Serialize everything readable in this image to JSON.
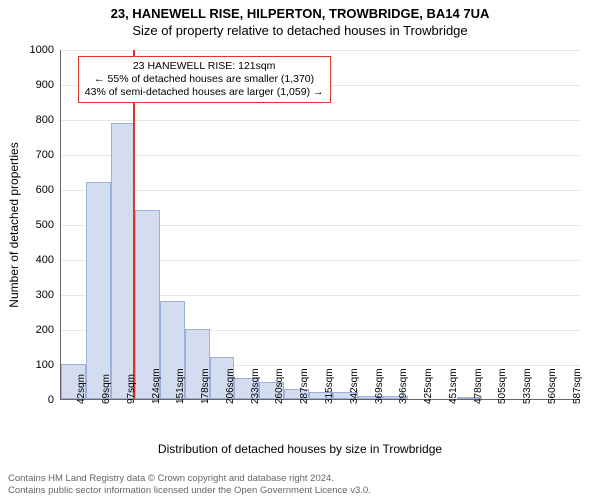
{
  "title": {
    "line1": "23, HANEWELL RISE, HILPERTON, TROWBRIDGE, BA14 7UA",
    "line2": "Size of property relative to detached houses in Trowbridge"
  },
  "chart": {
    "type": "histogram",
    "ylabel": "Number of detached properties",
    "xlabel": "Distribution of detached houses by size in Trowbridge",
    "ylim": [
      0,
      1000
    ],
    "ytick_step": 100,
    "xtick_labels": [
      "42sqm",
      "69sqm",
      "97sqm",
      "124sqm",
      "151sqm",
      "178sqm",
      "206sqm",
      "233sqm",
      "260sqm",
      "287sqm",
      "315sqm",
      "342sqm",
      "369sqm",
      "396sqm",
      "425sqm",
      "451sqm",
      "478sqm",
      "505sqm",
      "533sqm",
      "560sqm",
      "587sqm"
    ],
    "bin_start": 42,
    "bin_width_sqm": 27.25,
    "bin_count": 21,
    "values": [
      100,
      620,
      790,
      540,
      280,
      200,
      120,
      60,
      50,
      30,
      20,
      20,
      10,
      10,
      0,
      0,
      5,
      0,
      0,
      0,
      0
    ],
    "bar_fill": "#d4ddf0",
    "bar_stroke": "#9bb0da",
    "grid_color": "#e8e8e8",
    "axis_color": "#666666",
    "background": "#ffffff",
    "marker": {
      "value_sqm": 121,
      "color": "#d43a2a"
    },
    "annotation": {
      "lines": [
        "23 HANEWELL RISE: 121sqm",
        "← 55% of detached houses are smaller (1,370)",
        "43% of semi-detached houses are larger (1,059) →"
      ],
      "border_color": "#d43a2a",
      "fontsize": 10.5
    },
    "label_fontsize": 12,
    "tick_fontsize": 11
  },
  "footer": {
    "line1": "Contains HM Land Registry data © Crown copyright and database right 2024.",
    "line2": "Contains public sector information licensed under the Open Government Licence v3.0."
  }
}
